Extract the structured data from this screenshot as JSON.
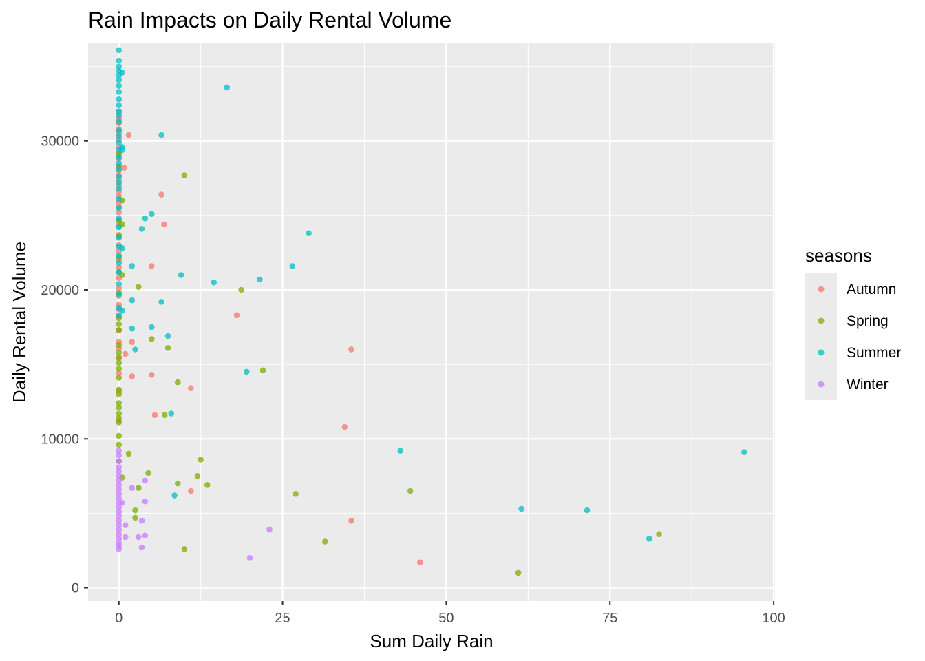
{
  "chart_data": {
    "type": "scatter",
    "title": "Rain Impacts on Daily Rental Volume",
    "xlabel": "Sum Daily Rain",
    "ylabel": "Daily Rental Volume",
    "xlim": [
      -4.7,
      100.2
    ],
    "ylim": [
      -900,
      36600
    ],
    "x_ticks": [
      0,
      25,
      50,
      75,
      100
    ],
    "x_tick_labels": [
      "0",
      "25",
      "50",
      "75",
      "100"
    ],
    "y_ticks": [
      0,
      10000,
      20000,
      30000
    ],
    "y_tick_labels": [
      "0",
      "10000",
      "20000",
      "30000"
    ],
    "grid": true,
    "legend": {
      "title": "seasons",
      "position": "right",
      "entries": [
        "Autumn",
        "Spring",
        "Summer",
        "Winter"
      ]
    },
    "colors": {
      "Autumn": "#F8766D",
      "Spring": "#7CAE00",
      "Summer": "#00BFC4",
      "Winter": "#C77CFF",
      "panel": "#EBEBEB",
      "grid": "#FFFFFF"
    },
    "series": [
      {
        "name": "Autumn",
        "points": [
          [
            1.5,
            30400
          ],
          [
            0.8,
            28200
          ],
          [
            6.5,
            26400
          ],
          [
            6.9,
            24400
          ],
          [
            5.0,
            21600
          ],
          [
            18.0,
            18300
          ],
          [
            2.0,
            16500
          ],
          [
            1.0,
            15700
          ],
          [
            35.5,
            16000
          ],
          [
            5.0,
            14300
          ],
          [
            2.0,
            14200
          ],
          [
            11.0,
            13400
          ],
          [
            5.5,
            11600
          ],
          [
            34.5,
            10800
          ],
          [
            11.0,
            6500
          ],
          [
            35.5,
            4500
          ],
          [
            46.0,
            1700
          ],
          [
            0,
            31900
          ],
          [
            0,
            31500
          ],
          [
            0,
            31200
          ],
          [
            0,
            30800
          ],
          [
            0,
            30500
          ],
          [
            0,
            30100
          ],
          [
            0,
            29600
          ],
          [
            0,
            29200
          ],
          [
            0,
            28800
          ],
          [
            0,
            28300
          ],
          [
            0,
            28000
          ],
          [
            0,
            27700
          ],
          [
            0,
            27400
          ],
          [
            0,
            27000
          ],
          [
            0,
            26600
          ],
          [
            0,
            26300
          ],
          [
            0,
            25900
          ],
          [
            0,
            25600
          ],
          [
            0,
            25200
          ],
          [
            0,
            24700
          ],
          [
            0,
            24300
          ],
          [
            0,
            23700
          ],
          [
            0,
            23000
          ],
          [
            0,
            22600
          ],
          [
            0,
            22000
          ],
          [
            0,
            21500
          ],
          [
            0,
            20800
          ],
          [
            0,
            20100
          ],
          [
            0,
            19600
          ],
          [
            0,
            19000
          ],
          [
            0,
            18700
          ],
          [
            0,
            18200
          ],
          [
            0,
            17300
          ],
          [
            0,
            16500
          ],
          [
            0,
            16100
          ],
          [
            0,
            15500
          ],
          [
            0,
            14400
          ],
          [
            0,
            13200
          ],
          [
            0,
            11200
          ]
        ]
      },
      {
        "name": "Spring",
        "points": [
          [
            10.0,
            27700
          ],
          [
            0.5,
            26000
          ],
          [
            0.5,
            24400
          ],
          [
            0.5,
            21000
          ],
          [
            3.0,
            20200
          ],
          [
            18.7,
            20000
          ],
          [
            5.0,
            16700
          ],
          [
            7.5,
            16100
          ],
          [
            22.0,
            14600
          ],
          [
            9.0,
            13800
          ],
          [
            7.0,
            11600
          ],
          [
            1.5,
            9000
          ],
          [
            12.5,
            8600
          ],
          [
            4.5,
            7700
          ],
          [
            0.5,
            7400
          ],
          [
            12.0,
            7500
          ],
          [
            9.0,
            7000
          ],
          [
            13.5,
            6900
          ],
          [
            3.0,
            6700
          ],
          [
            27.0,
            6300
          ],
          [
            44.5,
            6500
          ],
          [
            2.5,
            5200
          ],
          [
            2.5,
            4700
          ],
          [
            31.5,
            3100
          ],
          [
            10.0,
            2600
          ],
          [
            82.5,
            3600
          ],
          [
            61.0,
            1000
          ],
          [
            0,
            29100
          ],
          [
            0,
            28300
          ],
          [
            0,
            24600
          ],
          [
            0,
            23600
          ],
          [
            0,
            22200
          ],
          [
            0,
            21200
          ],
          [
            0,
            19800
          ],
          [
            0,
            18100
          ],
          [
            0,
            17700
          ],
          [
            0,
            17300
          ],
          [
            0,
            16300
          ],
          [
            0,
            15800
          ],
          [
            0,
            15400
          ],
          [
            0,
            15100
          ],
          [
            0,
            14700
          ],
          [
            0,
            14100
          ],
          [
            0,
            13300
          ],
          [
            0,
            13000
          ],
          [
            0,
            12400
          ],
          [
            0,
            12100
          ],
          [
            0,
            11700
          ],
          [
            0,
            11400
          ],
          [
            0,
            11100
          ],
          [
            0,
            10200
          ],
          [
            0,
            9600
          ],
          [
            0,
            8500
          ]
        ]
      },
      {
        "name": "Summer",
        "points": [
          [
            0.5,
            34600
          ],
          [
            16.5,
            33600
          ],
          [
            6.5,
            30400
          ],
          [
            0.5,
            29600
          ],
          [
            0.5,
            29400
          ],
          [
            5.0,
            25100
          ],
          [
            4.0,
            24800
          ],
          [
            3.5,
            24100
          ],
          [
            29.0,
            23800
          ],
          [
            0.5,
            22800
          ],
          [
            2.0,
            21600
          ],
          [
            26.5,
            21600
          ],
          [
            9.5,
            21000
          ],
          [
            14.5,
            20500
          ],
          [
            21.5,
            20700
          ],
          [
            2.0,
            19300
          ],
          [
            6.5,
            19200
          ],
          [
            0.5,
            18600
          ],
          [
            2.0,
            17400
          ],
          [
            5.0,
            17500
          ],
          [
            7.5,
            16900
          ],
          [
            2.5,
            16000
          ],
          [
            19.5,
            14500
          ],
          [
            8.0,
            11700
          ],
          [
            43.0,
            9200
          ],
          [
            95.5,
            9100
          ],
          [
            8.5,
            6200
          ],
          [
            61.5,
            5300
          ],
          [
            71.5,
            5200
          ],
          [
            81.0,
            3300
          ],
          [
            0,
            36100
          ],
          [
            0,
            35400
          ],
          [
            0,
            35000
          ],
          [
            0,
            34700
          ],
          [
            0,
            34400
          ],
          [
            0,
            34100
          ],
          [
            0,
            33700
          ],
          [
            0,
            33300
          ],
          [
            0,
            32800
          ],
          [
            0,
            32400
          ],
          [
            0,
            32000
          ],
          [
            0,
            31700
          ],
          [
            0,
            31300
          ],
          [
            0,
            30700
          ],
          [
            0,
            30300
          ],
          [
            0,
            29900
          ],
          [
            0,
            29400
          ],
          [
            0,
            28900
          ],
          [
            0,
            28500
          ],
          [
            0,
            28100
          ],
          [
            0,
            27600
          ],
          [
            0,
            27200
          ],
          [
            0,
            26800
          ],
          [
            0,
            26100
          ],
          [
            0,
            25500
          ],
          [
            0,
            24800
          ],
          [
            0,
            24200
          ],
          [
            0,
            23500
          ],
          [
            0,
            22900
          ],
          [
            0,
            22300
          ],
          [
            0,
            21800
          ],
          [
            0,
            21200
          ],
          [
            0,
            20400
          ],
          [
            0,
            19700
          ],
          [
            0,
            18800
          ],
          [
            0,
            18300
          ]
        ]
      },
      {
        "name": "Winter",
        "points": [
          [
            2.0,
            6700
          ],
          [
            4.0,
            7200
          ],
          [
            4.0,
            5800
          ],
          [
            0.5,
            5700
          ],
          [
            3.5,
            4500
          ],
          [
            1.0,
            4200
          ],
          [
            1.0,
            3400
          ],
          [
            4.0,
            3500
          ],
          [
            3.0,
            3400
          ],
          [
            3.5,
            2700
          ],
          [
            23.0,
            3900
          ],
          [
            20.0,
            2000
          ],
          [
            0,
            9200
          ],
          [
            0,
            8900
          ],
          [
            0,
            8500
          ],
          [
            0,
            8100
          ],
          [
            0,
            7800
          ],
          [
            0,
            7500
          ],
          [
            0,
            7200
          ],
          [
            0,
            6900
          ],
          [
            0,
            6600
          ],
          [
            0,
            6300
          ],
          [
            0,
            6000
          ],
          [
            0,
            5700
          ],
          [
            0,
            5400
          ],
          [
            0,
            5100
          ],
          [
            0,
            4800
          ],
          [
            0,
            4500
          ],
          [
            0,
            4200
          ],
          [
            0,
            3900
          ],
          [
            0,
            3600
          ],
          [
            0,
            3300
          ],
          [
            0,
            3000
          ],
          [
            0,
            2800
          ],
          [
            0,
            2600
          ]
        ]
      }
    ]
  }
}
